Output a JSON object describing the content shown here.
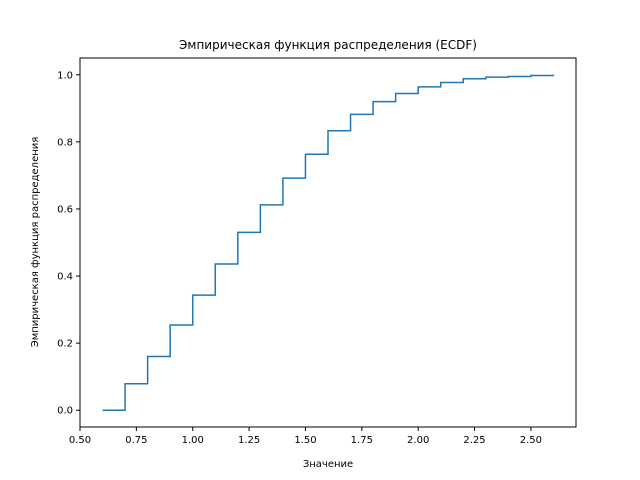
{
  "chart_data": {
    "type": "line",
    "step": "post",
    "title": "Эмпирическая функция распределения (ECDF)",
    "xlabel": "Значение",
    "ylabel": "Эмпирическая функция распределения",
    "xlim": [
      0.5,
      2.7
    ],
    "ylim": [
      -0.05,
      1.05
    ],
    "xticks": [
      0.5,
      0.75,
      1.0,
      1.25,
      1.5,
      1.75,
      2.0,
      2.25,
      2.5
    ],
    "xtick_labels": [
      "0.50",
      "0.75",
      "1.00",
      "1.25",
      "1.50",
      "1.75",
      "2.00",
      "2.25",
      "2.50"
    ],
    "yticks": [
      0.0,
      0.2,
      0.4,
      0.6,
      0.8,
      1.0
    ],
    "ytick_labels": [
      "0.0",
      "0.2",
      "0.4",
      "0.6",
      "0.8",
      "1.0"
    ],
    "grid": false,
    "legend": null,
    "color": "#1f77b4",
    "series": [
      {
        "x": [
          0.6,
          0.7,
          0.8,
          0.9,
          1.0,
          1.1,
          1.2,
          1.3,
          1.4,
          1.5,
          1.6,
          1.7,
          1.8,
          1.9,
          2.0,
          2.1,
          2.2,
          2.3,
          2.4,
          2.5,
          2.6
        ],
        "y": [
          0.0,
          0.079,
          0.16,
          0.254,
          0.343,
          0.436,
          0.53,
          0.612,
          0.692,
          0.763,
          0.833,
          0.882,
          0.92,
          0.944,
          0.964,
          0.977,
          0.988,
          0.993,
          0.995,
          0.998,
          1.0
        ]
      }
    ]
  }
}
